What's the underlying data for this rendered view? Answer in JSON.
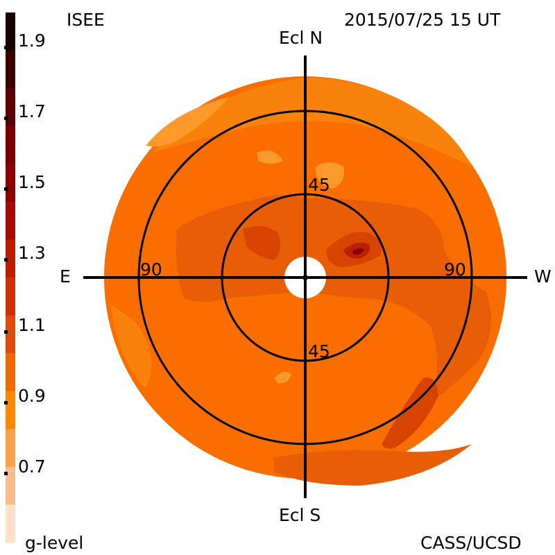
{
  "header": {
    "institute": "ISEE",
    "datetime": "2015/07/25 15 UT"
  },
  "footer": {
    "legend_title": "g-level",
    "credit": "CASS/UCSD"
  },
  "axes": {
    "north": "Ecl N",
    "south": "Ecl S",
    "east": "E",
    "west": "W",
    "ring_inner_top": "45",
    "ring_inner_bottom": "45",
    "ring_outer_left": "90",
    "ring_outer_right": "90"
  },
  "colorbar": {
    "ticks": [
      "1.9",
      "1.7",
      "1.5",
      "1.3",
      "1.1",
      "0.9",
      "0.7"
    ],
    "colors": [
      "#1a0000",
      "#3a0000",
      "#5a0000",
      "#7a0000",
      "#8c0000",
      "#a50a00",
      "#be1e00",
      "#cc3300",
      "#dd4a0a",
      "#ee6a00",
      "#ff8800",
      "#fca14a",
      "#fbbd8a",
      "#fde1c9"
    ]
  },
  "colors": {
    "base": "#fa6e00",
    "outer": "#f8820a",
    "mid": "#e85e06",
    "dark": "#d64400",
    "darker": "#b82200",
    "darkest": "#8a0000",
    "light": "#fb9a2a"
  }
}
